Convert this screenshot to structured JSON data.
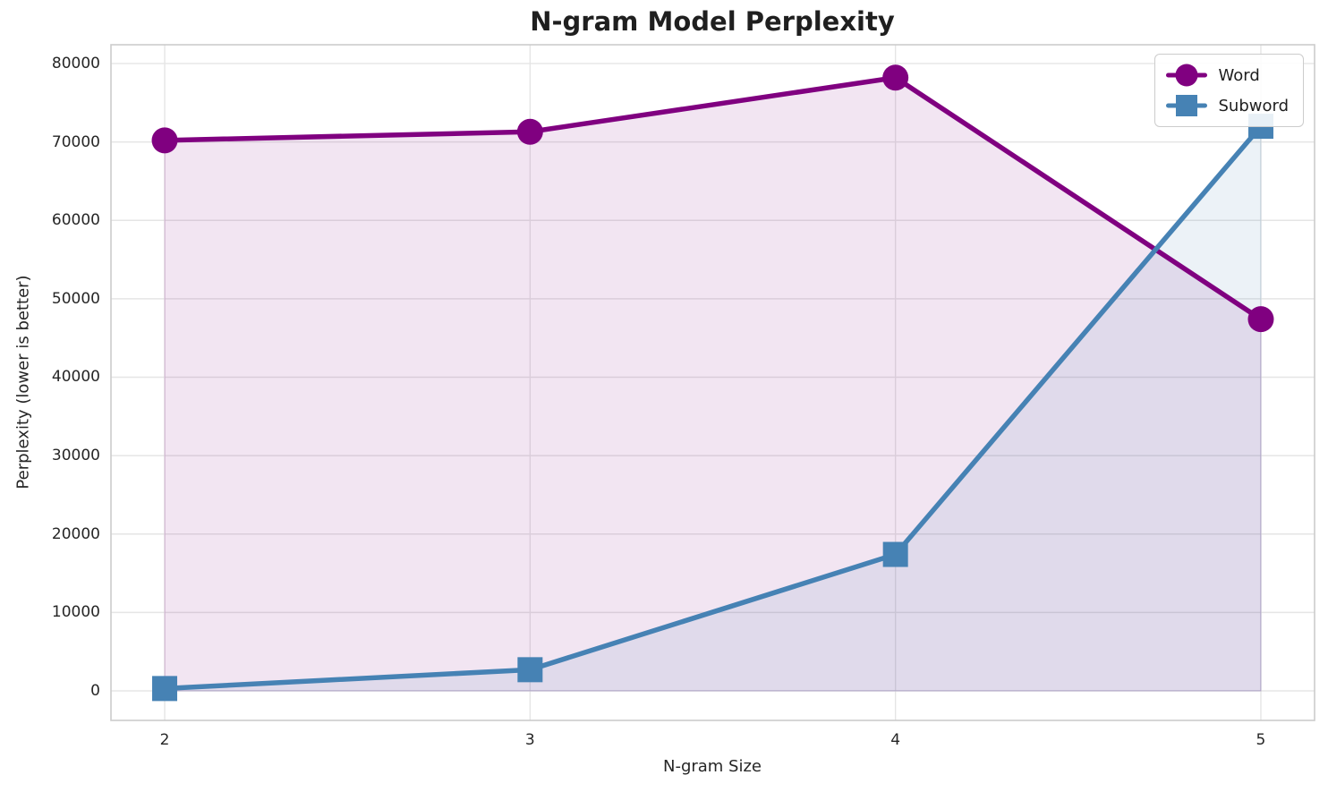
{
  "title": "N-gram Model Perplexity",
  "chart_data": {
    "type": "line",
    "title": "N-gram Model Perplexity",
    "xlabel": "N-gram Size",
    "ylabel": "Perplexity (lower is better)",
    "x": [
      2,
      3,
      4,
      5
    ],
    "series": [
      {
        "name": "Word",
        "marker": "circle",
        "color": "#800080",
        "values": [
          70200,
          71300,
          78200,
          47400
        ]
      },
      {
        "name": "Subword",
        "marker": "square",
        "color": "#4682b4",
        "values": [
          300,
          2700,
          17400,
          72000
        ]
      }
    ],
    "area_fill": true,
    "fill_opacity": 0.1,
    "xticks": [
      2,
      3,
      4,
      5
    ],
    "yticks": [
      0,
      10000,
      20000,
      30000,
      40000,
      50000,
      60000,
      70000,
      80000
    ],
    "xlim": [
      1.853,
      5.147
    ],
    "ylim": [
      -3766,
      82395
    ],
    "grid": true,
    "legend_position": "upper right"
  },
  "colors": {
    "word_series": "#800080",
    "subword_series": "#4682b4",
    "grid_line": "#e5e5e5",
    "plot_border": "#cccccc",
    "text": "#262626"
  }
}
